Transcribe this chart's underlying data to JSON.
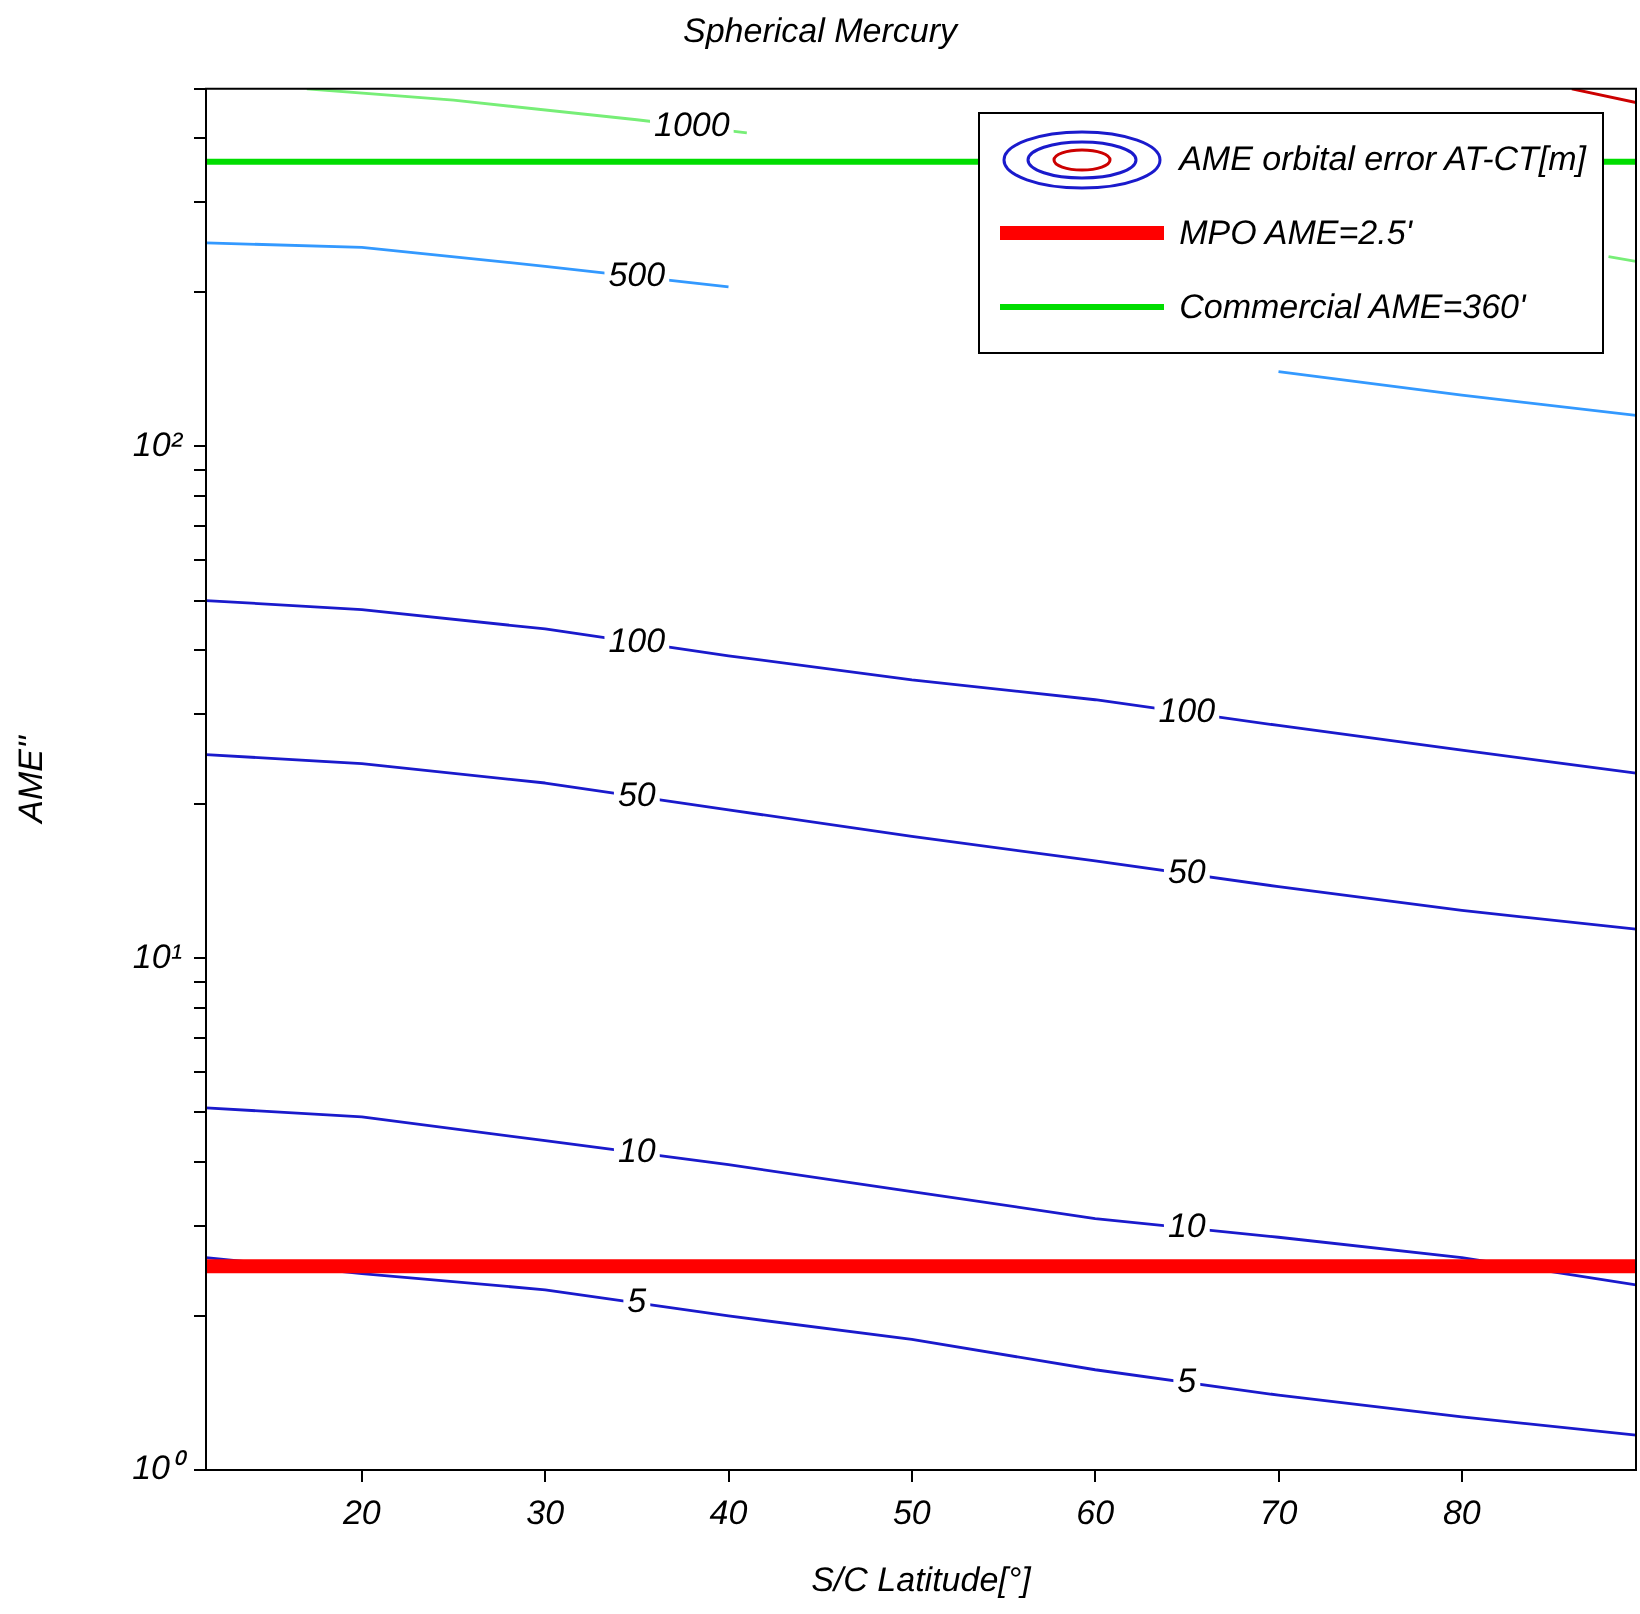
{
  "chart_data": {
    "type": "line",
    "title": "Spherical Mercury",
    "xlabel": "S/C Latitude[°]",
    "ylabel": "AME''",
    "log": "y",
    "grid": false,
    "marker": "none",
    "legend": "top right",
    "xlim": [
      11.5,
      89.5
    ],
    "xticks": [
      20,
      30,
      40,
      50,
      60,
      70,
      80
    ],
    "ylim": [
      1,
      500
    ],
    "yticks": [
      {
        "value": 1,
        "label": "10⁰"
      },
      {
        "value": 2,
        "label": null
      },
      {
        "value": 3,
        "label": null
      },
      {
        "value": 4,
        "label": null
      },
      {
        "value": 5,
        "label": null
      },
      {
        "value": 6,
        "label": null
      },
      {
        "value": 7,
        "label": null
      },
      {
        "value": 8,
        "label": null
      },
      {
        "value": 9,
        "label": null
      },
      {
        "value": 10,
        "label": "10¹"
      },
      {
        "value": 20,
        "label": null
      },
      {
        "value": 30,
        "label": null
      },
      {
        "value": 40,
        "label": null
      },
      {
        "value": 50,
        "label": null
      },
      {
        "value": 60,
        "label": null
      },
      {
        "value": 70,
        "label": null
      },
      {
        "value": 80,
        "label": null
      },
      {
        "value": 90,
        "label": null
      },
      {
        "value": 100,
        "label": "10²"
      },
      {
        "value": 200,
        "label": null
      },
      {
        "value": 300,
        "label": null
      },
      {
        "value": 400,
        "label": null
      },
      {
        "value": 500,
        "label": null
      }
    ],
    "series": [
      {
        "name": "5",
        "color": "#1a1acc",
        "x": [
          11.5,
          20,
          30,
          40,
          50,
          60,
          70,
          80,
          89.5
        ],
        "values": [
          2.6,
          2.42,
          2.25,
          2.0,
          1.8,
          1.57,
          1.4,
          1.27,
          1.17
        ]
      },
      {
        "name": "10",
        "color": "#1a1acc",
        "x": [
          11.5,
          20,
          30,
          40,
          50,
          60,
          70,
          80,
          89.5
        ],
        "values": [
          5.1,
          4.9,
          4.4,
          3.95,
          3.5,
          3.1,
          2.85,
          2.6,
          2.3
        ]
      },
      {
        "name": "50",
        "color": "#1a1acc",
        "x": [
          11.5,
          20,
          30,
          40,
          50,
          60,
          70,
          80,
          89.5
        ],
        "values": [
          25,
          24,
          22,
          19.5,
          17.3,
          15.5,
          13.8,
          12.4,
          11.4
        ]
      },
      {
        "name": "100",
        "color": "#1a1acc",
        "x": [
          11.5,
          20,
          30,
          40,
          50,
          60,
          70,
          80,
          89.5
        ],
        "values": [
          50,
          48,
          44,
          39,
          35,
          32,
          28.5,
          25.5,
          23
        ]
      },
      {
        "name": "500",
        "color": "#3399ff",
        "x": [
          11.5,
          20,
          30,
          40,
          50,
          60,
          70,
          80,
          89.5
        ],
        "values": [
          250,
          245,
          225,
          205,
          null,
          null,
          140,
          126,
          115
        ]
      },
      {
        "name": "1000",
        "color": "#77ee77",
        "x": [
          17,
          25,
          35,
          41,
          65,
          88,
          89.5
        ],
        "values": [
          500,
          475,
          435,
          410,
          null,
          235,
          230
        ]
      },
      {
        "color": "#cc0000",
        "x": [
          86,
          89.5
        ],
        "values": [
          500,
          470
        ]
      }
    ],
    "ref_lines": [
      {
        "axis": "y",
        "value": 2.5,
        "label": "MPO AME=2.5'",
        "color": "#ff0000"
      },
      {
        "axis": "y",
        "value": 360,
        "label": "Commercial AME=360'",
        "color": "#00dd00"
      }
    ],
    "annotations": [
      "AME orbital error AT-CT[m]"
    ]
  }
}
